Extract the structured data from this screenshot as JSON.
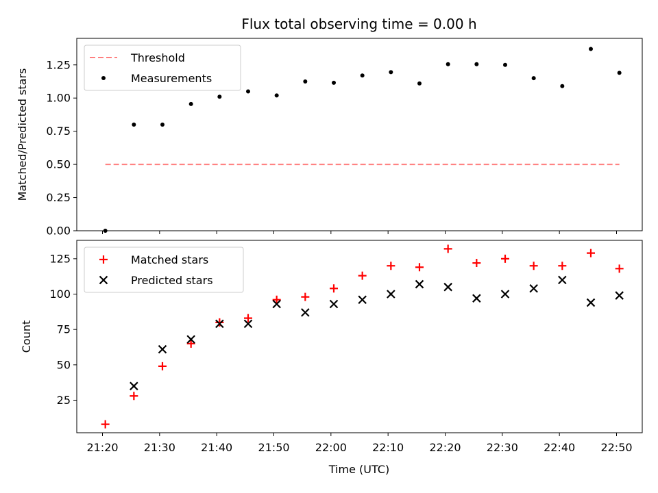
{
  "chart_data": {
    "title": "Flux total observing time = 0.00 h",
    "xlabel": "Time (UTC)",
    "x_tick_labels": [
      "21:20",
      "21:30",
      "21:40",
      "21:50",
      "22:00",
      "22:10",
      "22:20",
      "22:30",
      "22:40",
      "22:50"
    ],
    "x_tick_minutes": [
      0,
      10,
      20,
      30,
      40,
      50,
      60,
      70,
      80,
      90
    ],
    "x_minutes": [
      0.5,
      5.5,
      10.5,
      15.5,
      20.5,
      25.5,
      30.5,
      35.5,
      40.5,
      45.5,
      50.5,
      55.5,
      60.5,
      65.5,
      70.5,
      75.5,
      80.5,
      85.5,
      90.5
    ],
    "xlim_minutes": [
      -4.5,
      94.5
    ],
    "panels": [
      {
        "type": "scatter",
        "ylabel": "Matched/Predicted stars",
        "ylim": [
          0,
          1.45
        ],
        "y_ticks": [
          0.0,
          0.25,
          0.5,
          0.75,
          1.0,
          1.25
        ],
        "y_tick_labels": [
          "0.00",
          "0.25",
          "0.50",
          "0.75",
          "1.00",
          "1.25"
        ],
        "legend_position": "upper left",
        "threshold": {
          "name": "Threshold",
          "value": 0.5,
          "color": "#ff7f7f",
          "x_range_minutes": [
            0.5,
            90.5
          ]
        },
        "series": [
          {
            "name": "Measurements",
            "marker": "dot",
            "color": "#000000",
            "values": [
              0.0,
              0.8,
              0.8,
              0.955,
              1.01,
              1.05,
              1.02,
              1.125,
              1.115,
              1.17,
              1.195,
              1.11,
              1.255,
              1.255,
              1.25,
              1.15,
              1.09,
              1.37,
              1.19
            ]
          }
        ]
      },
      {
        "type": "scatter",
        "ylabel": "Count",
        "ylim": [
          2,
          138
        ],
        "y_ticks": [
          25,
          50,
          75,
          100,
          125
        ],
        "y_tick_labels": [
          "25",
          "50",
          "75",
          "100",
          "125"
        ],
        "legend_position": "upper left",
        "series": [
          {
            "name": "Matched stars",
            "marker": "plus",
            "color": "#ff0000",
            "values": [
              8,
              28,
              49,
              65,
              80,
              83,
              96,
              98,
              104,
              113,
              120,
              119,
              132,
              122,
              125,
              120,
              120,
              129,
              118
            ]
          },
          {
            "name": "Predicted stars",
            "marker": "x",
            "color": "#000000",
            "values": [
              null,
              35,
              61,
              68,
              79,
              79,
              93,
              87,
              93,
              96,
              100,
              107,
              105,
              97,
              100,
              104,
              110,
              94,
              99
            ]
          }
        ]
      }
    ]
  }
}
